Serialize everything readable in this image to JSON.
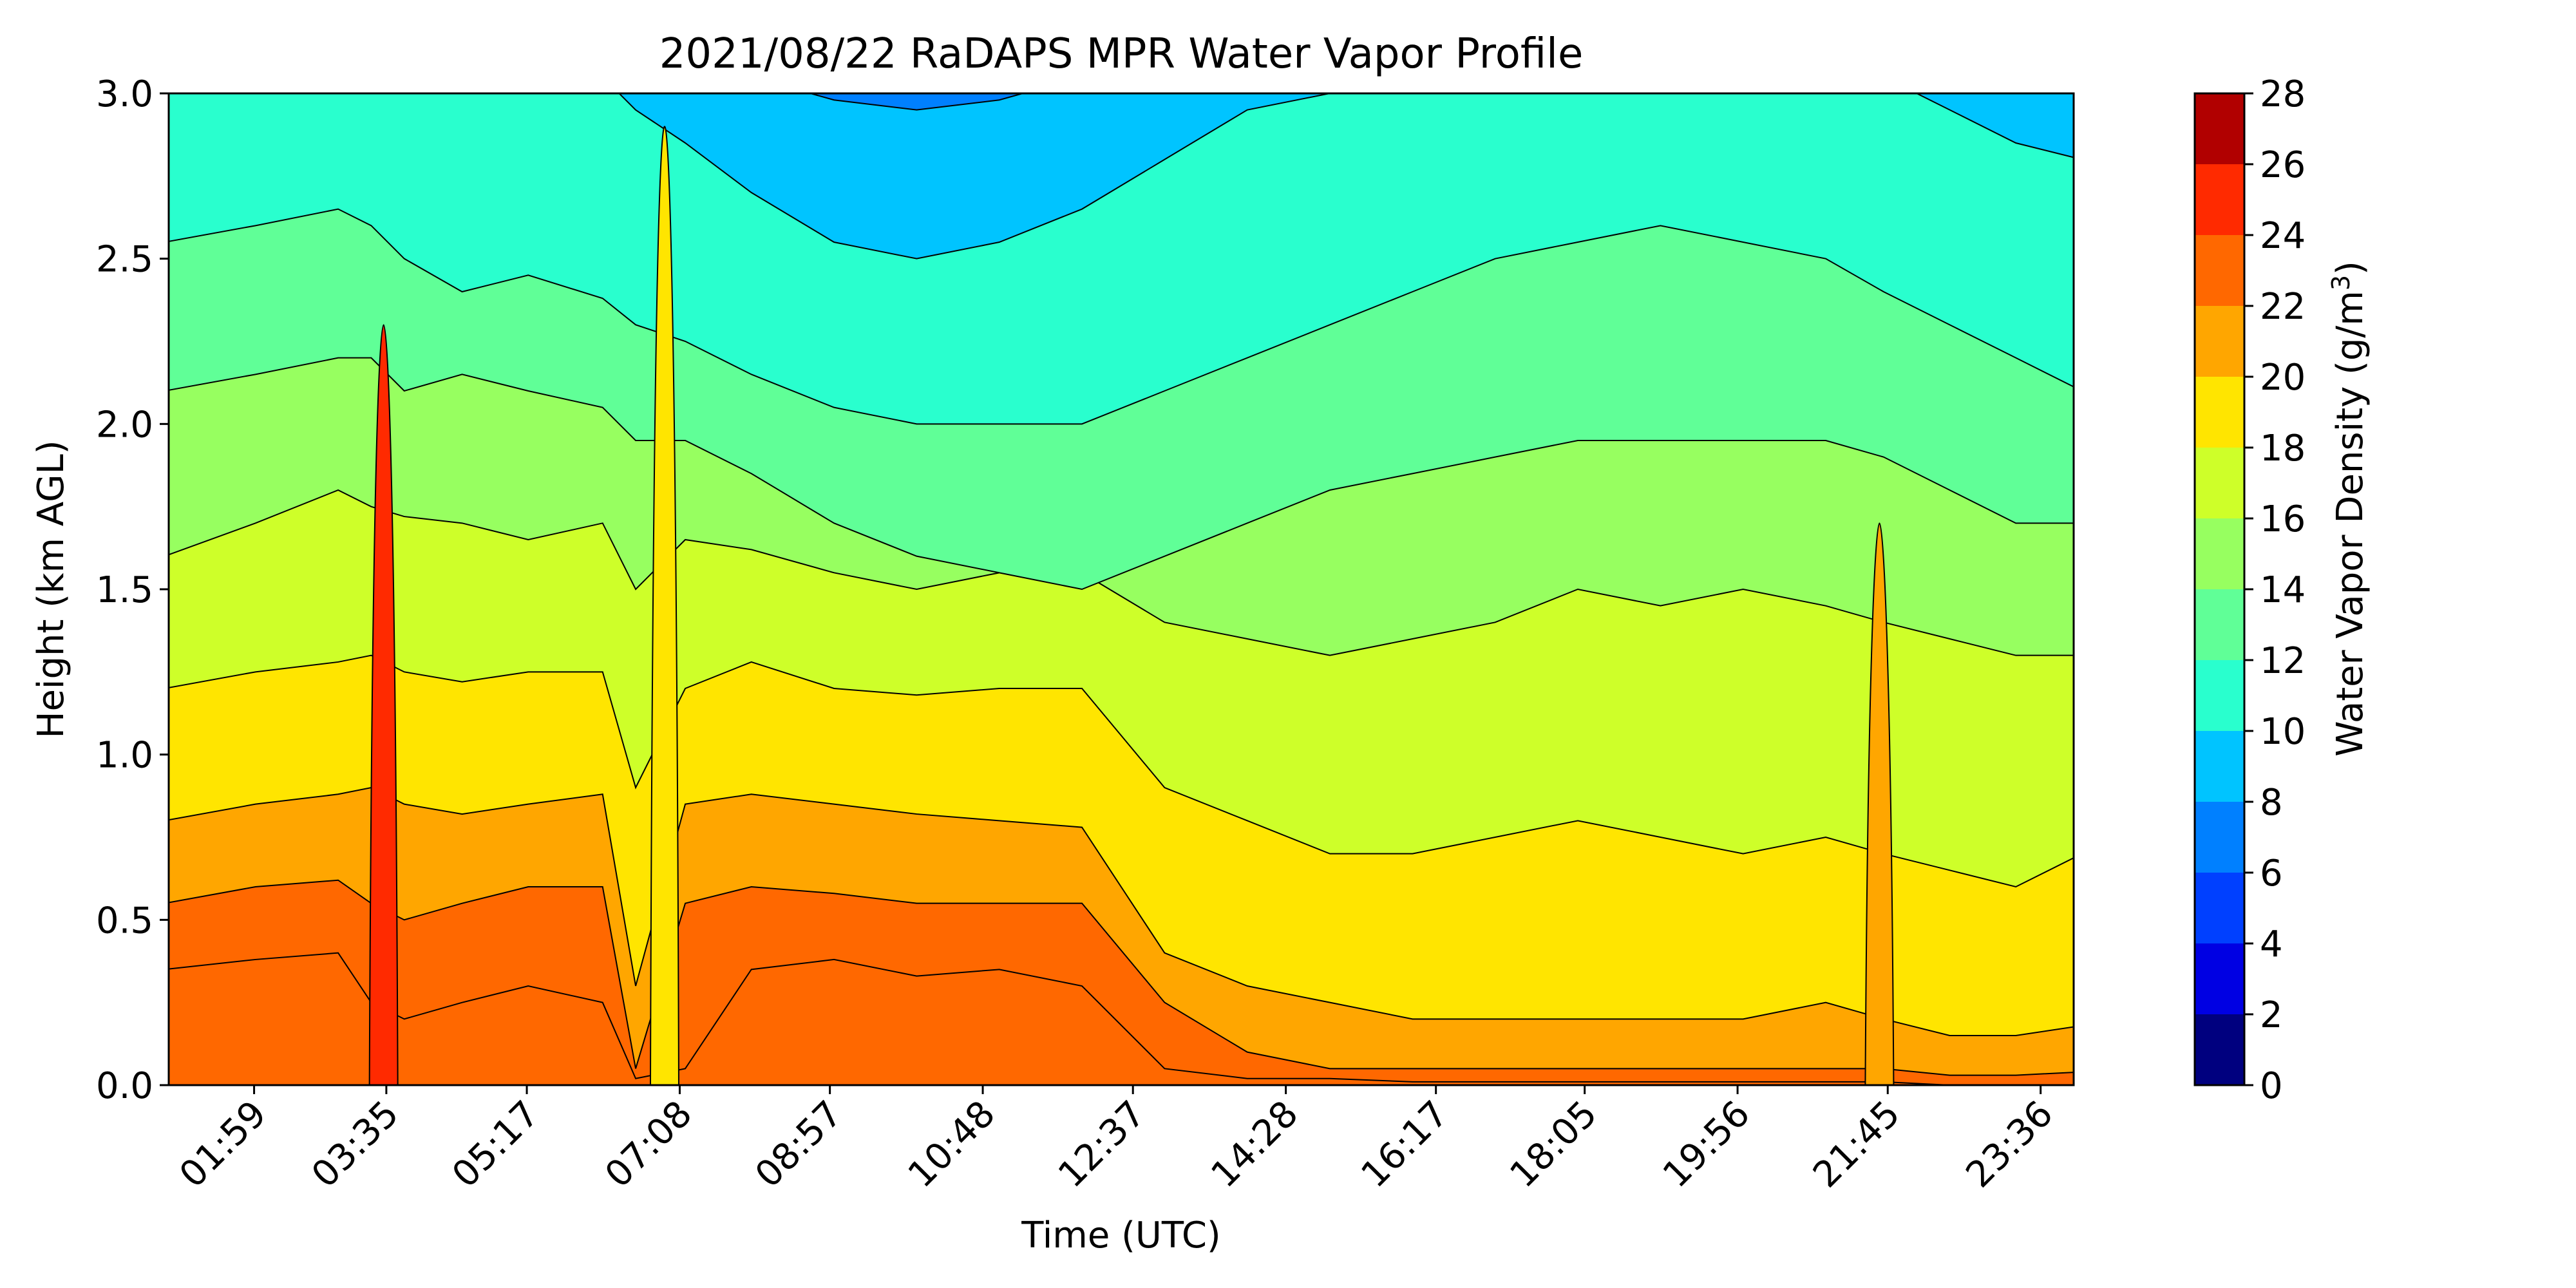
{
  "chart_data": {
    "type": "heatmap",
    "subtype": "filled-contour",
    "title": "2021/08/22 RaDAPS MPR Water Vapor Profile",
    "xlabel": "Time (UTC)",
    "ylabel": "Height (km AGL)",
    "x_tick_labels": [
      "01:59",
      "03:35",
      "05:17",
      "07:08",
      "08:57",
      "10:48",
      "12:37",
      "14:28",
      "16:17",
      "18:05",
      "19:56",
      "21:45",
      "23:36"
    ],
    "x_tick_rotation_deg": 45,
    "ylim": [
      0.0,
      3.0
    ],
    "y_ticks": [
      "0.0",
      "0.5",
      "1.0",
      "1.5",
      "2.0",
      "2.5",
      "3.0"
    ],
    "colorbar": {
      "label": "Water Vapor Density (g/m³)",
      "label_main": "Water Vapor Density (g/m",
      "label_sup": "3",
      "label_close": ")",
      "range": [
        0,
        28
      ],
      "ticks": [
        "0",
        "2",
        "4",
        "6",
        "8",
        "10",
        "12",
        "14",
        "16",
        "18",
        "20",
        "22",
        "24",
        "26",
        "28"
      ],
      "levels": [
        0,
        2,
        4,
        6,
        8,
        10,
        12,
        14,
        16,
        18,
        20,
        22,
        24,
        26,
        28
      ],
      "colormap": "jet",
      "colors": [
        "#00007f",
        "#0000e3",
        "#0040ff",
        "#0080ff",
        "#00c4ff",
        "#29ffce",
        "#60ff97",
        "#97ff60",
        "#ceff29",
        "#ffe500",
        "#ffa600",
        "#ff6800",
        "#ff2a00",
        "#b10000"
      ]
    },
    "x_time_hours_at_ticks": [
      1.983,
      3.583,
      5.283,
      7.133,
      8.95,
      10.8,
      12.617,
      14.467,
      16.283,
      18.083,
      19.933,
      21.75,
      23.6
    ],
    "contour_heights_km": {
      "x_hours": [
        1.0,
        2.0,
        3.0,
        3.4,
        3.8,
        4.5,
        5.3,
        6.2,
        6.6,
        7.2,
        8.0,
        9.0,
        10.0,
        11.0,
        12.0,
        13.0,
        14.0,
        15.0,
        16.0,
        17.0,
        18.0,
        19.0,
        20.0,
        21.0,
        21.7,
        22.5,
        23.3,
        23.8
      ],
      "level_22": [
        0.35,
        0.38,
        0.4,
        0.25,
        0.2,
        0.25,
        0.3,
        0.25,
        0.02,
        0.05,
        0.35,
        0.38,
        0.33,
        0.35,
        0.3,
        0.05,
        0.02,
        0.02,
        0.01,
        0.01,
        0.01,
        0.01,
        0.01,
        0.01,
        0.01,
        0.0,
        0.0,
        0.0
      ],
      "level_20": [
        0.55,
        0.6,
        0.62,
        0.55,
        0.5,
        0.55,
        0.6,
        0.6,
        0.05,
        0.55,
        0.6,
        0.58,
        0.55,
        0.55,
        0.55,
        0.25,
        0.1,
        0.05,
        0.05,
        0.05,
        0.05,
        0.05,
        0.05,
        0.05,
        0.05,
        0.03,
        0.03,
        0.04
      ],
      "level_18": [
        0.8,
        0.85,
        0.88,
        0.9,
        0.85,
        0.82,
        0.85,
        0.88,
        0.3,
        0.85,
        0.88,
        0.85,
        0.82,
        0.8,
        0.78,
        0.4,
        0.3,
        0.25,
        0.2,
        0.2,
        0.2,
        0.2,
        0.2,
        0.25,
        0.2,
        0.15,
        0.15,
        0.18
      ],
      "level_16": [
        1.2,
        1.25,
        1.28,
        1.3,
        1.25,
        1.22,
        1.25,
        1.25,
        0.9,
        1.2,
        1.28,
        1.2,
        1.18,
        1.2,
        1.2,
        0.9,
        0.8,
        0.7,
        0.7,
        0.75,
        0.8,
        0.75,
        0.7,
        0.75,
        0.7,
        0.65,
        0.6,
        0.7
      ],
      "level_14": [
        1.6,
        1.7,
        1.8,
        1.75,
        1.72,
        1.7,
        1.65,
        1.7,
        1.5,
        1.65,
        1.62,
        1.55,
        1.5,
        1.55,
        1.55,
        1.4,
        1.35,
        1.3,
        1.35,
        1.4,
        1.5,
        1.45,
        1.5,
        1.45,
        1.4,
        1.35,
        1.3,
        1.3
      ],
      "level_12": [
        2.1,
        2.15,
        2.2,
        2.2,
        2.1,
        2.15,
        2.1,
        2.05,
        1.95,
        1.95,
        1.85,
        1.7,
        1.6,
        1.55,
        1.5,
        1.6,
        1.7,
        1.8,
        1.85,
        1.9,
        1.95,
        1.95,
        1.95,
        1.95,
        1.9,
        1.8,
        1.7,
        1.7
      ],
      "level_10": [
        2.55,
        2.6,
        2.65,
        2.6,
        2.5,
        2.4,
        2.45,
        2.38,
        2.3,
        2.25,
        2.15,
        2.05,
        2.0,
        2.0,
        2.0,
        2.1,
        2.2,
        2.3,
        2.4,
        2.5,
        2.55,
        2.6,
        2.55,
        2.5,
        2.4,
        2.3,
        2.2,
        2.1
      ],
      "level_8": [
        3.05,
        3.05,
        3.05,
        3.05,
        3.05,
        3.05,
        3.05,
        3.05,
        2.95,
        2.85,
        2.7,
        2.55,
        2.5,
        2.55,
        2.65,
        2.8,
        2.95,
        3.0,
        3.05,
        3.05,
        3.05,
        3.05,
        3.05,
        3.05,
        3.05,
        2.95,
        2.85,
        2.8
      ],
      "level_6": [
        3.1,
        3.1,
        3.1,
        3.1,
        3.1,
        3.1,
        3.1,
        3.1,
        3.1,
        3.1,
        3.05,
        2.98,
        2.95,
        2.98,
        3.05,
        3.1,
        3.1,
        3.1,
        3.1,
        3.1,
        3.1,
        3.1,
        3.1,
        3.1,
        3.1,
        3.1,
        3.1,
        3.1
      ]
    },
    "background_fill_level": 22,
    "features": [
      {
        "x_hour": 3.55,
        "y_range": [
          0.0,
          2.3
        ],
        "level": 24,
        "note": "narrow moist plume"
      },
      {
        "x_hour": 6.95,
        "y_range": [
          0.0,
          2.9
        ],
        "level": 18,
        "note": "narrow vertical feature"
      },
      {
        "x_hour": 21.65,
        "y_range": [
          0.0,
          1.7
        ],
        "level": 20,
        "note": "narrow moist plume"
      }
    ],
    "grid": false
  }
}
